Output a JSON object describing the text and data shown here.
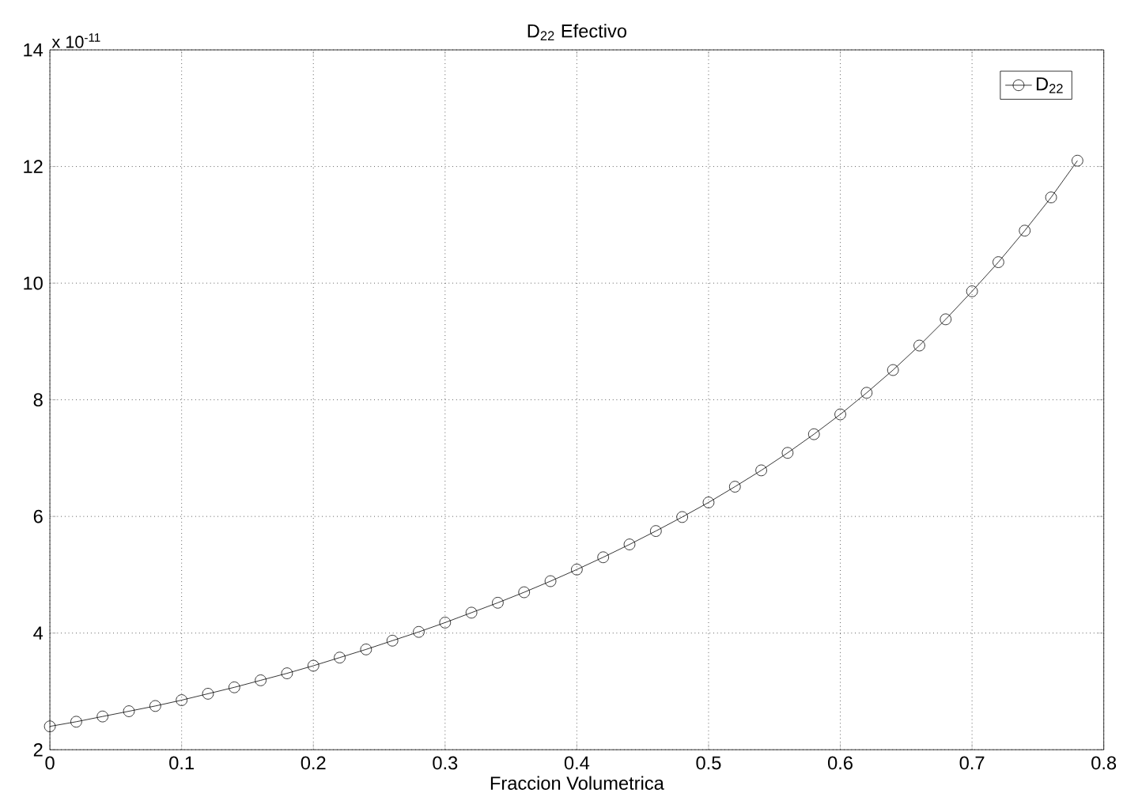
{
  "chart_data": {
    "type": "line",
    "title": "D$_{22}$ Efectivo",
    "xlabel": "Fraccion Volumetrica",
    "annotations": [
      "x 10$^{-11}$"
    ],
    "x": [
      0,
      0.02,
      0.04,
      0.06,
      0.08,
      0.1,
      0.12,
      0.14,
      0.16,
      0.18,
      0.2,
      0.22,
      0.24,
      0.26,
      0.28,
      0.3,
      0.32,
      0.34,
      0.36,
      0.38,
      0.4,
      0.42,
      0.44,
      0.46,
      0.48,
      0.5,
      0.52,
      0.54,
      0.56,
      0.58,
      0.6,
      0.62,
      0.64,
      0.66,
      0.68,
      0.7,
      0.72,
      0.74,
      0.76,
      0.78
    ],
    "series": [
      {
        "name": "D$_{22}$",
        "color": "#000000",
        "values": [
          2.4,
          2.48,
          2.57,
          2.66,
          2.75,
          2.85,
          2.96,
          3.07,
          3.19,
          3.31,
          3.44,
          3.58,
          3.72,
          3.87,
          4.02,
          4.18,
          4.35,
          4.52,
          4.7,
          4.89,
          5.09,
          5.3,
          5.52,
          5.75,
          5.99,
          6.24,
          6.51,
          6.79,
          7.09,
          7.41,
          7.75,
          8.12,
          8.51,
          8.93,
          9.38,
          9.86,
          10.36,
          10.9,
          11.47,
          12.1
        ]
      }
    ],
    "xlim": [
      0,
      0.8
    ],
    "ylim": [
      2,
      14
    ],
    "xticks": [
      0,
      0.1,
      0.2,
      0.3,
      0.4,
      0.5,
      0.6,
      0.7,
      0.8
    ],
    "yticks": [
      2,
      4,
      6,
      8,
      10,
      12,
      14
    ],
    "grid": true,
    "legend": "top right",
    "marker": "circle",
    "line_style": "solid"
  }
}
